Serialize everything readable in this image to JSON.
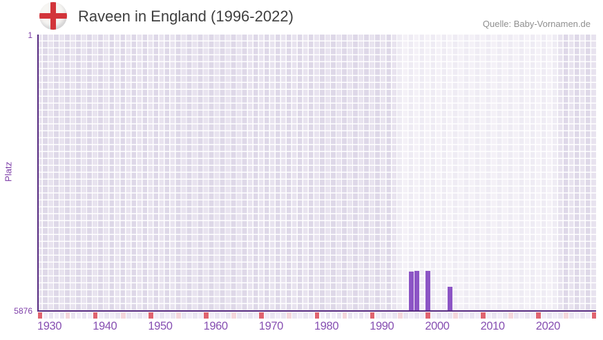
{
  "header": {
    "title": "Raveen in England (1996-2022)",
    "source": "Quelle: Baby-Vornamen.de"
  },
  "chart_data": {
    "type": "bar",
    "title": "Raveen in England (1996-2022)",
    "ylabel": "Platz",
    "y_top_label": "1",
    "y_bottom_label": "5876",
    "y_range": [
      1,
      5876
    ],
    "y_inverted": true,
    "x_range": [
      1930,
      2030
    ],
    "x_tick_labels": [
      "1930",
      "1940",
      "1950",
      "1960",
      "1970",
      "1980",
      "1990",
      "2000",
      "2010",
      "2020"
    ],
    "data_period": {
      "from": 1996,
      "to": 2022
    },
    "grid": true,
    "legend": "none",
    "series": [
      {
        "name": "Raveen",
        "points": [
          {
            "year": 1997,
            "rank": 5055
          },
          {
            "year": 1998,
            "rank": 5030
          },
          {
            "year": 2000,
            "rank": 5030
          },
          {
            "year": 2004,
            "rank": 5380
          }
        ]
      }
    ]
  },
  "colors": {
    "bar": "#8c55c5",
    "axis_line": "#562a80",
    "x_label": "#8750b2",
    "y_label": "#7d3da8",
    "decade_tick": "#e0636f",
    "half_decade_tick": "#f5d6db",
    "strip_cell_even": "#eae5f2",
    "strip_cell_odd": "#f1edf8",
    "title_text": "#3f3f3f",
    "source_text": "#8f8f8f",
    "flag_cross": "#d2343a"
  }
}
